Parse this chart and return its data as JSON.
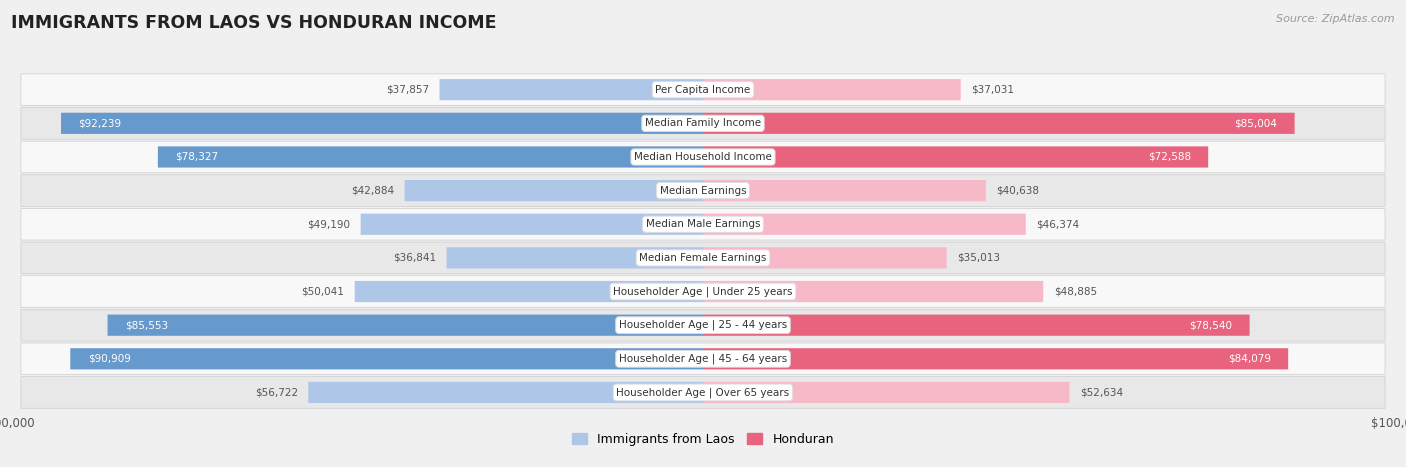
{
  "title": "IMMIGRANTS FROM LAOS VS HONDURAN INCOME",
  "source": "Source: ZipAtlas.com",
  "categories": [
    "Per Capita Income",
    "Median Family Income",
    "Median Household Income",
    "Median Earnings",
    "Median Male Earnings",
    "Median Female Earnings",
    "Householder Age | Under 25 years",
    "Householder Age | 25 - 44 years",
    "Householder Age | 45 - 64 years",
    "Householder Age | Over 65 years"
  ],
  "laos_values": [
    37857,
    92239,
    78327,
    42884,
    49190,
    36841,
    50041,
    85553,
    90909,
    56722
  ],
  "honduran_values": [
    37031,
    85004,
    72588,
    40638,
    46374,
    35013,
    48885,
    78540,
    84079,
    52634
  ],
  "laos_labels": [
    "$37,857",
    "$92,239",
    "$78,327",
    "$42,884",
    "$49,190",
    "$36,841",
    "$50,041",
    "$85,553",
    "$90,909",
    "$56,722"
  ],
  "honduran_labels": [
    "$37,031",
    "$85,004",
    "$72,588",
    "$40,638",
    "$46,374",
    "$35,013",
    "$48,885",
    "$78,540",
    "$84,079",
    "$52,634"
  ],
  "max_value": 100000,
  "laos_color_light": "#aec6e8",
  "laos_color_dark": "#6699cc",
  "honduran_color_light": "#f7b8c8",
  "honduran_color_dark": "#e8637e",
  "background_color": "#f0f0f0",
  "row_bg_odd": "#f8f8f8",
  "row_bg_even": "#e8e8e8",
  "label_white": "#ffffff",
  "label_dark": "#555555",
  "high_value_threshold": 60000,
  "inside_threshold": 20000
}
